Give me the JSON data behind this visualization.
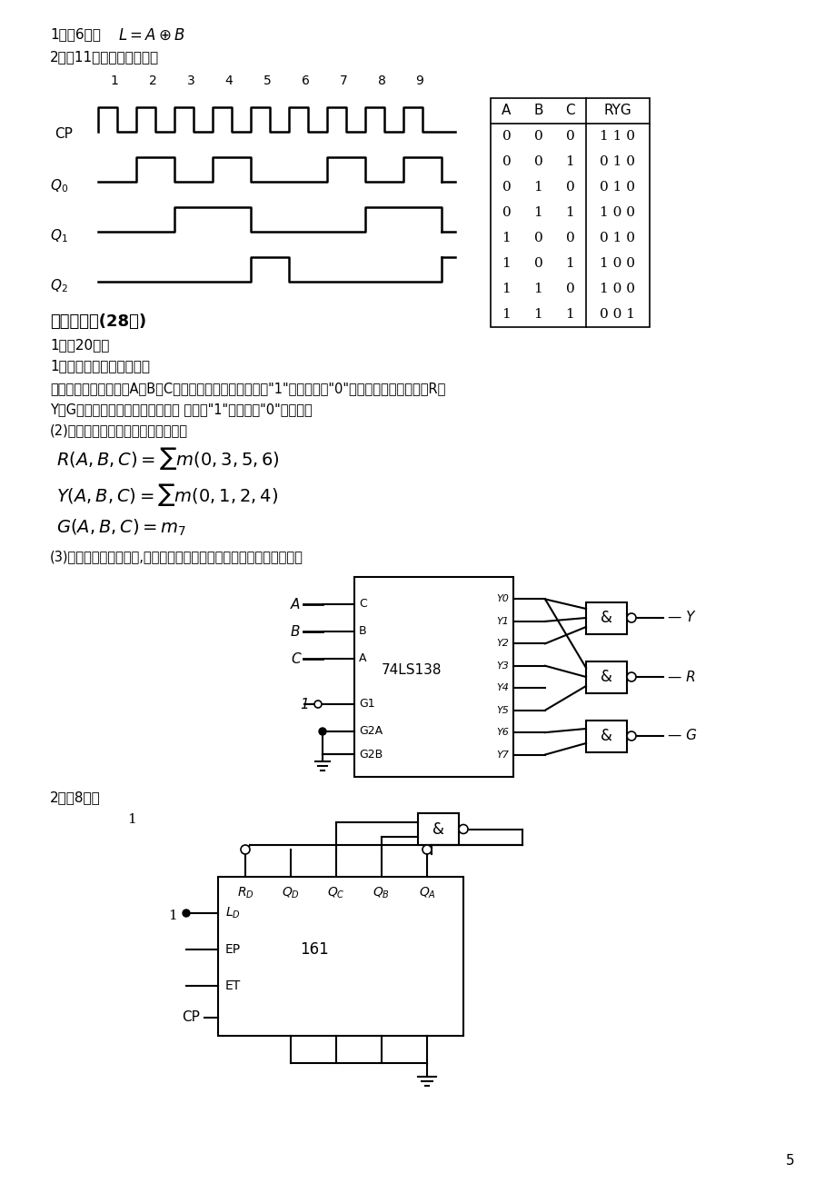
{
  "title": "",
  "background_color": "#ffffff",
  "text_color": "#000000",
  "page_number": "5",
  "table_data": {
    "headers": [
      "A",
      "B",
      "C",
      "RYG"
    ],
    "rows": [
      [
        "0",
        "0",
        "0",
        "1 1 0"
      ],
      [
        "0",
        "0",
        "1",
        "0 1 0"
      ],
      [
        "0",
        "1",
        "0",
        "0 1 0"
      ],
      [
        "0",
        "1",
        "1",
        "1 0 0"
      ],
      [
        "1",
        "0",
        "0",
        "0 1 0"
      ],
      [
        "1",
        "0",
        "1",
        "1 0 0"
      ],
      [
        "1",
        "1",
        "0",
        "1 0 0"
      ],
      [
        "1",
        "1",
        "1",
        "0 0 1"
      ]
    ]
  }
}
